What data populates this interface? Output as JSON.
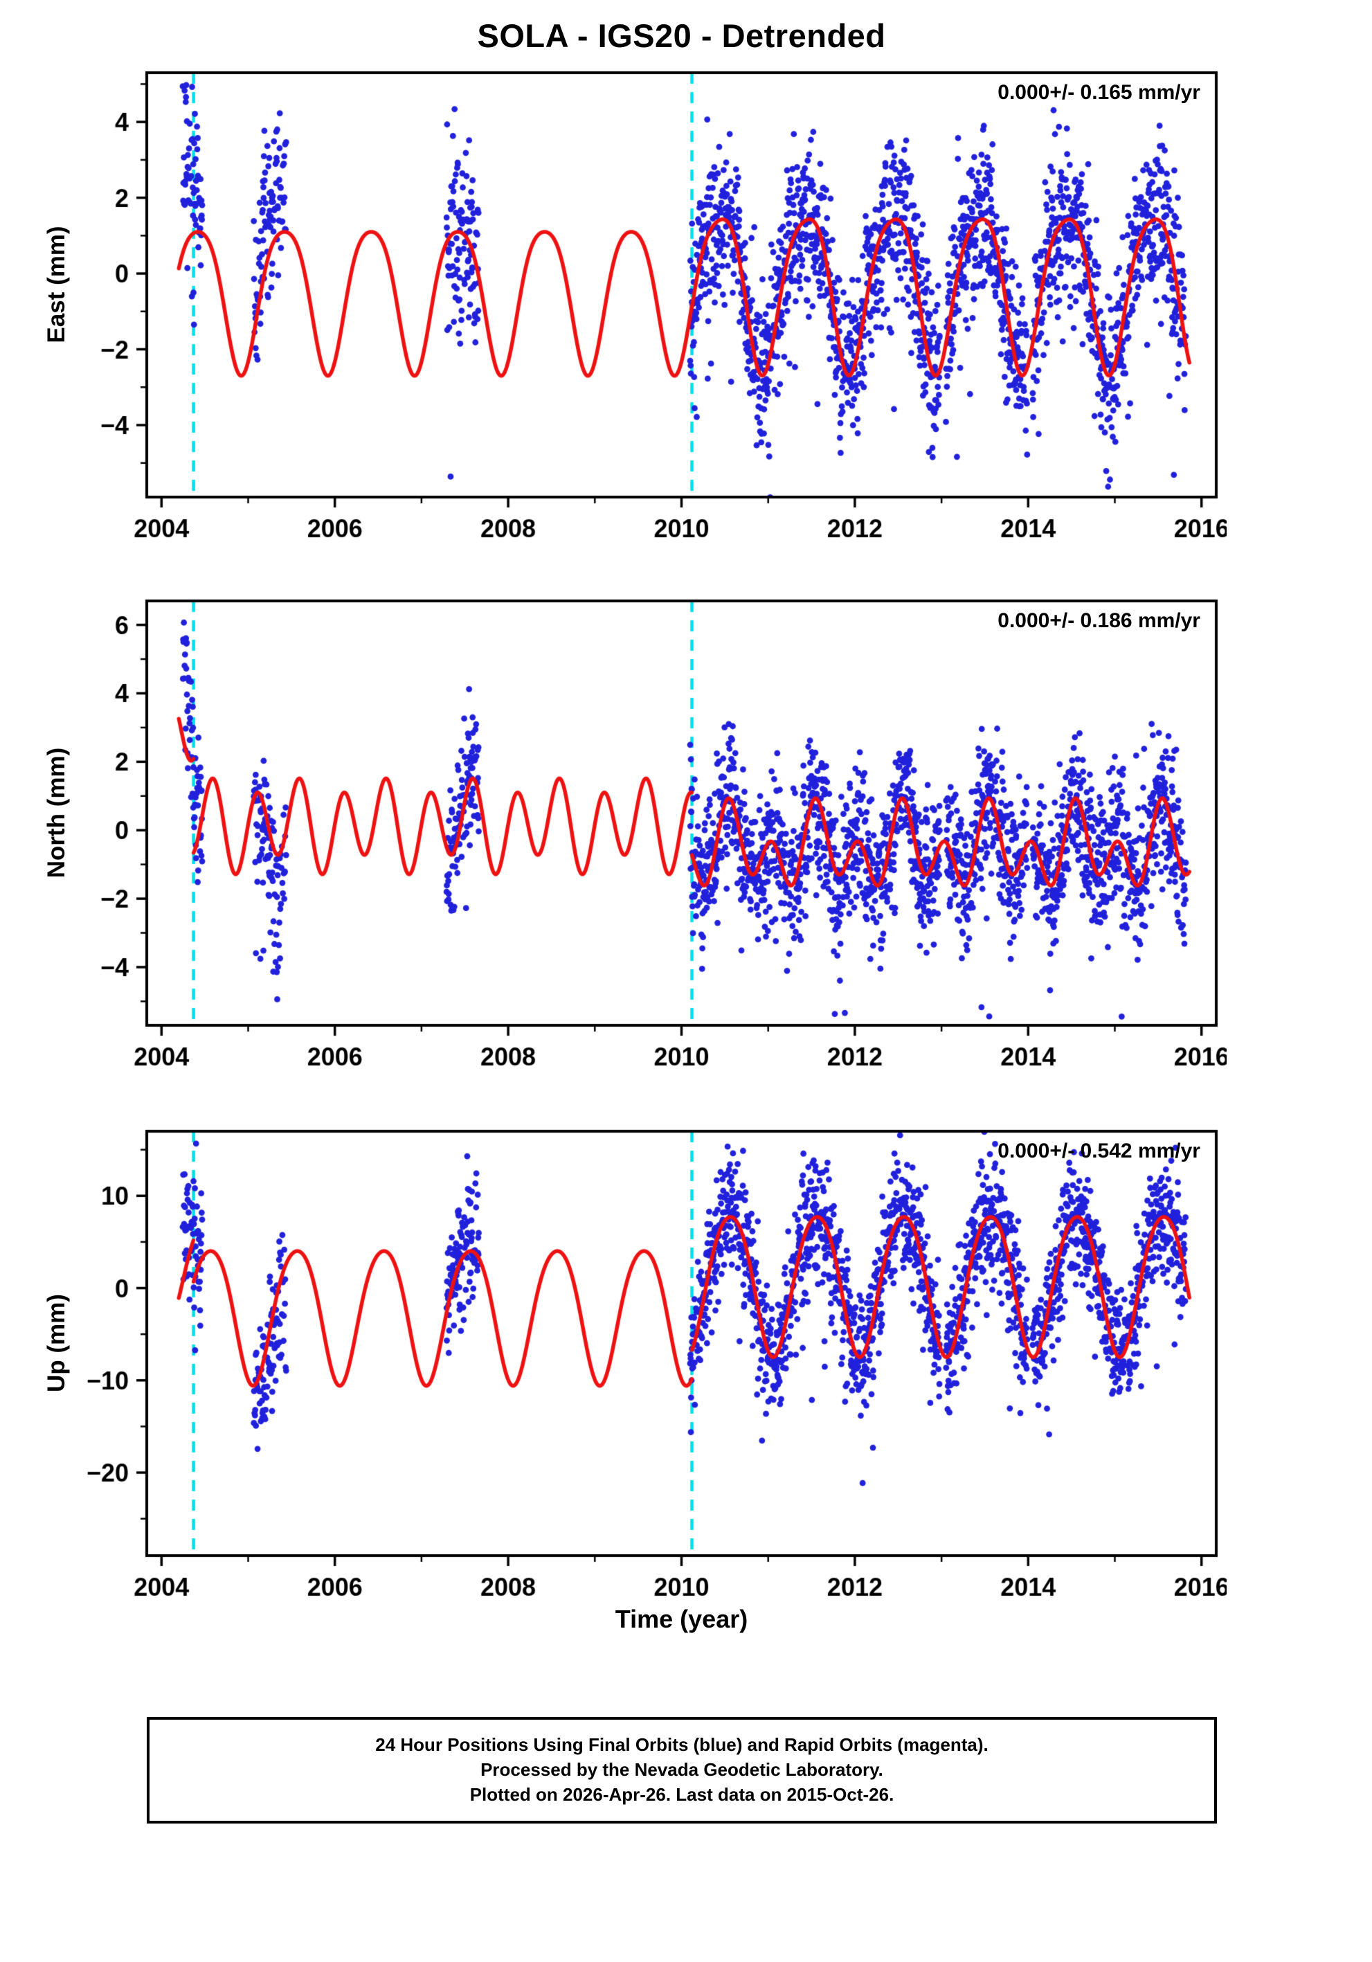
{
  "title": "SOLA - IGS20 - Detrended",
  "xlabel": "Time (year)",
  "caption": {
    "lines": [
      "24 Hour Positions Using Final Orbits (blue) and Rapid Orbits (magenta).",
      "Processed by the Nevada Geodetic Laboratory.",
      "Plotted on 2026-Apr-26. Last data on 2015-Oct-26."
    ]
  },
  "colors": {
    "points": "#2121dc",
    "model_line": "#ee1111",
    "break_line": "#00dfe8",
    "frame": "#000000",
    "text": "#000000",
    "background": "#ffffff"
  },
  "chart_data": {
    "type": "scatter",
    "title": "SOLA - IGS20 - Detrended",
    "description": "GPS daily position residual time series for station SOLA (detrended), three components with seasonal model curve and equipment/offset break lines.",
    "x_axis": {
      "label": "Time (year)",
      "lim": [
        2003.83,
        2016.17
      ],
      "major_ticks": [
        {
          "v": 2004,
          "label": "2004"
        },
        {
          "v": 2006,
          "label": "2006"
        },
        {
          "v": 2008,
          "label": "2008"
        },
        {
          "v": 2010,
          "label": "2010"
        },
        {
          "v": 2012,
          "label": "2012"
        },
        {
          "v": 2014,
          "label": "2014"
        },
        {
          "v": 2016,
          "label": "2016"
        }
      ],
      "minor_step": 1
    },
    "break_lines": [
      2004.37,
      2010.12
    ],
    "time_segments": [
      {
        "t0": 2004.245,
        "t1": 2004.47,
        "step": 0.0027,
        "drop": 0.15
      },
      {
        "t0": 2005.06,
        "t1": 2005.44,
        "step": 0.0027,
        "drop": 0.25
      },
      {
        "t0": 2007.29,
        "t1": 2007.66,
        "step": 0.0027,
        "drop": 0.2
      },
      {
        "t0": 2010.1,
        "t1": 2015.82,
        "step": 0.0027,
        "drop": 0.12,
        "gaps": [
          [
            2012.98,
            2013.05
          ],
          [
            2013.99,
            2014.05
          ]
        ]
      }
    ],
    "panels": [
      {
        "name": "east",
        "ylabel": "East (mm)",
        "annotation": "0.000+/- 0.165 mm/yr",
        "rate_mm_yr": 0.0,
        "rate_sigma_mm_yr": 0.165,
        "ylim": [
          -5.9,
          5.3
        ],
        "minor_step": 1,
        "yticks": [
          {
            "v": -4,
            "label": "−4"
          },
          {
            "v": -2,
            "label": "−2"
          },
          {
            "v": 0,
            "label": "0"
          },
          {
            "v": 2,
            "label": "2"
          },
          {
            "v": 4,
            "label": "4"
          }
        ],
        "model_segments": [
          {
            "t0": 2004.2,
            "t1": 2010.12,
            "offset": -0.5,
            "a1": 1.9,
            "p1": 0.42,
            "a2": 0.3,
            "p2": 0.17
          },
          {
            "t0": 2010.12,
            "t1": 2015.86,
            "offset": -0.3,
            "a1": 2.05,
            "p1": 0.44,
            "a2": 0.35,
            "p2": 0.17
          }
        ],
        "scatter": {
          "sd": 1.05,
          "segs": [
            {
              "off": 0.3,
              "sdm": 1.25,
              "decay": 2.8,
              "out": 0.02,
              "outSign": 1
            },
            {
              "off": 1.1,
              "sdm": 1.15,
              "decay": 0,
              "out": 0.03,
              "outSign": 1
            },
            {
              "off": -0.2,
              "sdm": 1.1,
              "decay": 0,
              "out": 0.04,
              "outSign": -1
            },
            {
              "off": 0,
              "sdm": 1.0,
              "decay": 0,
              "out": 0.012,
              "outSign": -1
            }
          ]
        }
      },
      {
        "name": "north",
        "ylabel": "North (mm)",
        "annotation": "0.000+/- 0.186 mm/yr",
        "rate_mm_yr": 0.0,
        "rate_sigma_mm_yr": 0.186,
        "ylim": [
          -5.7,
          6.7
        ],
        "minor_step": 1,
        "yticks": [
          {
            "v": -4,
            "label": "−4"
          },
          {
            "v": -2,
            "label": "−2"
          },
          {
            "v": 0,
            "label": "0"
          },
          {
            "v": 2,
            "label": "2"
          },
          {
            "v": 4,
            "label": "4"
          },
          {
            "v": 6,
            "label": "6"
          }
        ],
        "model_segments": [
          {
            "t0": 2004.2,
            "t1": 2004.37,
            "offset": 2.9,
            "a1": 0.35,
            "p1": 0.45,
            "a2": 1.15,
            "p2": 0.1
          },
          {
            "t0": 2004.37,
            "t1": 2010.12,
            "offset": 0.15,
            "a1": 0.35,
            "p1": 0.45,
            "a2": 1.15,
            "p2": 0.1
          },
          {
            "t0": 2010.12,
            "t1": 2015.86,
            "offset": -0.55,
            "a1": 0.65,
            "p1": 0.58,
            "a2": 0.85,
            "p2": 0.04
          }
        ],
        "scatter": {
          "sd": 1.05,
          "segs": [
            {
              "off": 0.4,
              "sdm": 1.05,
              "decay": 2.6,
              "out": 0.02,
              "outSign": 1
            },
            {
              "off": -0.6,
              "sdm": 1.15,
              "decay": 0,
              "out": 0.03,
              "outSign": -1
            },
            {
              "off": 0.1,
              "sdm": 1.05,
              "decay": 0,
              "out": 0.02,
              "outSign": 1
            },
            {
              "off": 0,
              "sdm": 1.0,
              "decay": 0,
              "out": 0.012,
              "outSign": -1
            }
          ]
        }
      },
      {
        "name": "up",
        "ylabel": "Up (mm)",
        "annotation": "0.000+/- 0.542 mm/yr",
        "rate_mm_yr": 0.0,
        "rate_sigma_mm_yr": 0.542,
        "ylim": [
          -29,
          17
        ],
        "minor_step": 5,
        "yticks": [
          {
            "v": -20,
            "label": "−20"
          },
          {
            "v": -10,
            "label": "−10"
          },
          {
            "v": 0,
            "label": "0"
          },
          {
            "v": 10,
            "label": "10"
          }
        ],
        "model_segments": [
          {
            "t0": 2004.2,
            "t1": 2004.37,
            "offset": 2.5,
            "a1": 6.0,
            "p1": 0.56,
            "a2": 0.8,
            "p2": 0.3
          },
          {
            "t0": 2004.37,
            "t1": 2010.12,
            "offset": -2.5,
            "a1": 7.3,
            "p1": 0.56,
            "a2": 0.8,
            "p2": 0.3
          },
          {
            "t0": 2010.12,
            "t1": 2015.86,
            "offset": 0.8,
            "a1": 7.6,
            "p1": 0.56,
            "a2": 0.7,
            "p2": 0.3
          }
        ],
        "scatter": {
          "sd": 3.2,
          "segs": [
            {
              "off": 1.5,
              "sdm": 1.06,
              "decay": 4.0,
              "out": 0.02,
              "outSign": 1
            },
            {
              "off": -2.0,
              "sdm": 1.12,
              "decay": 0,
              "out": 0.05,
              "outSign": -1
            },
            {
              "off": 1.0,
              "sdm": 1.06,
              "decay": 0,
              "out": 0.02,
              "outSign": 1
            },
            {
              "off": 0,
              "sdm": 1.0,
              "decay": 0,
              "out": 0.012,
              "outSign": -1
            }
          ]
        }
      }
    ]
  }
}
